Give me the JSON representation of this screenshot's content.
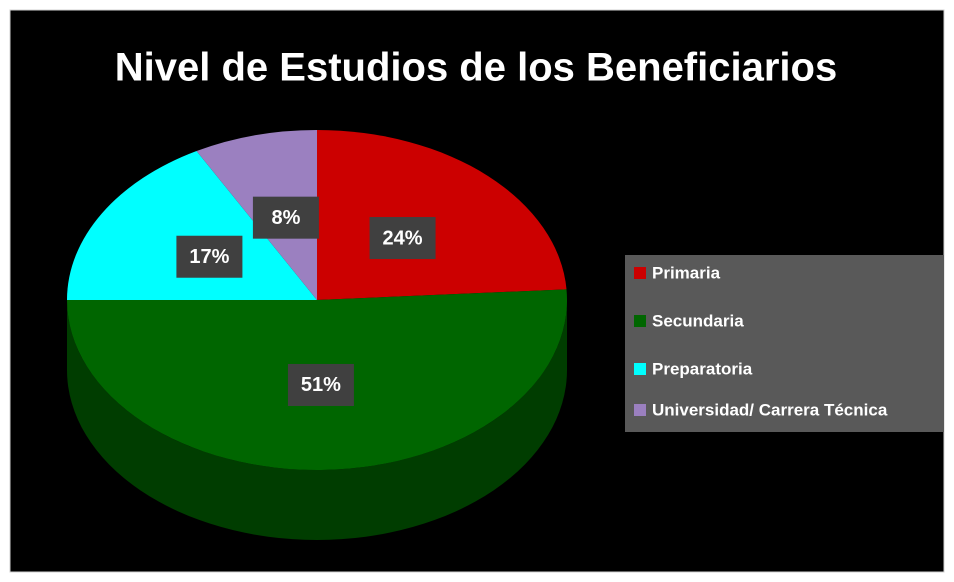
{
  "chart_data": {
    "type": "pie",
    "title": "Nivel de Estudios de los Beneficiarios",
    "categories": [
      "Primaria",
      "Secundaria",
      "Preparatoria",
      "Universidad/ Carrera Técnica"
    ],
    "values": [
      24,
      51,
      17,
      8
    ],
    "value_labels": [
      "24%",
      "51%",
      "17%",
      "8%"
    ],
    "colors": [
      "#cc0000",
      "#006600",
      "#00ffff",
      "#9b80c0"
    ],
    "legend": "right"
  }
}
